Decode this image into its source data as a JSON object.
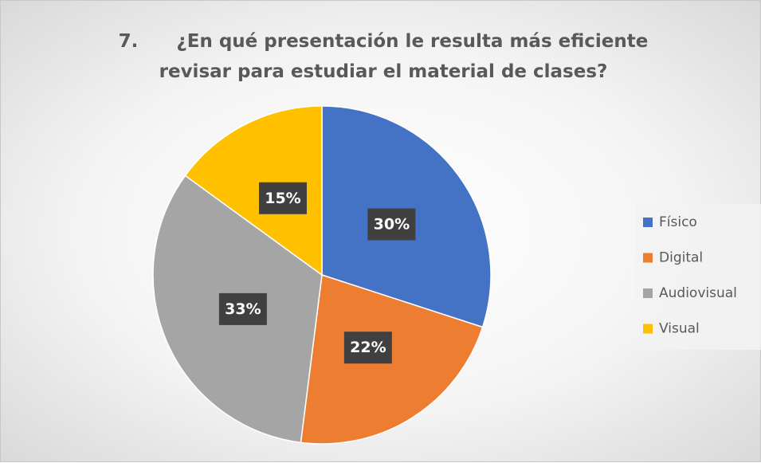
{
  "chart_data": {
    "type": "pie",
    "title": "7.      ¿En qué presentación le resulta más eficiente revisar para estudiar el material de clases?",
    "categories": [
      "Físico",
      "Digital",
      "Audiovisual",
      "Visual"
    ],
    "values": [
      30,
      22,
      33,
      15
    ],
    "value_labels": [
      "30%",
      "22%",
      "33%",
      "15%"
    ],
    "colors": [
      "#4472c4",
      "#ed7d31",
      "#a5a5a5",
      "#ffc000"
    ],
    "legend": "right"
  }
}
